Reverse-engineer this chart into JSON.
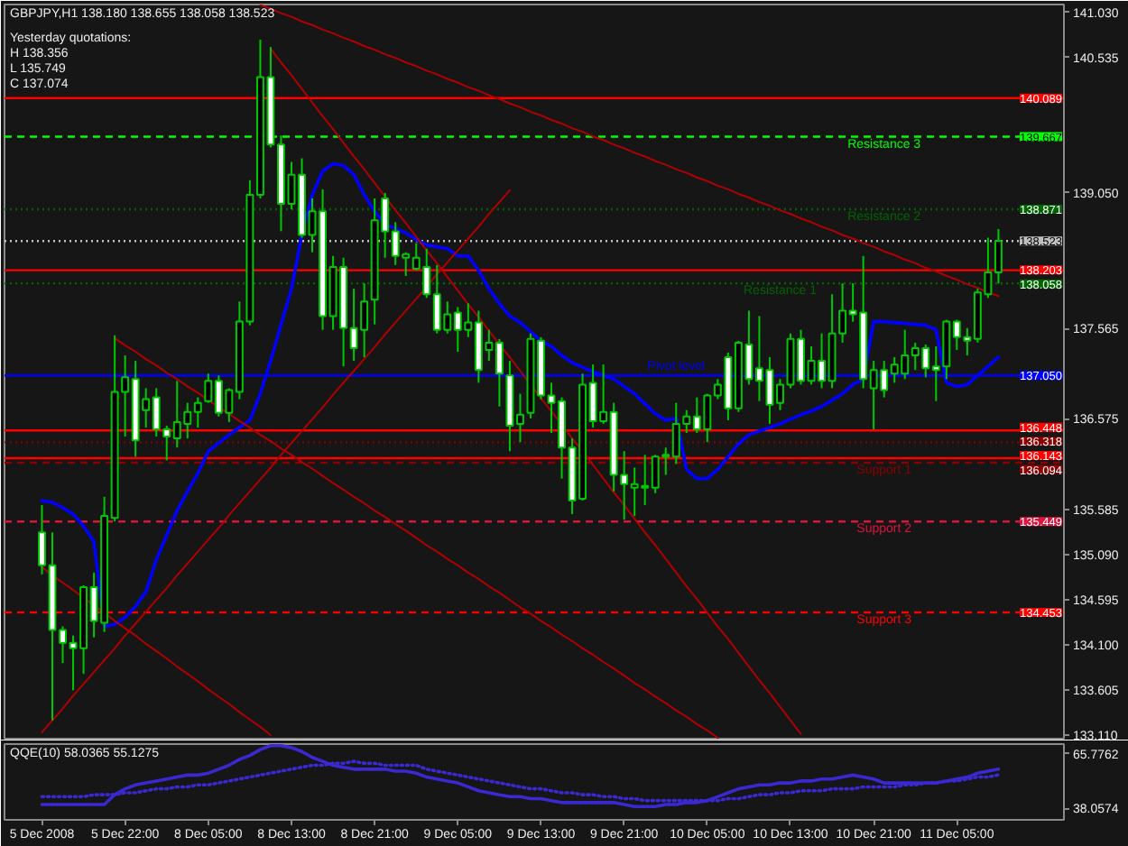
{
  "chart_data": [
    {
      "type": "candlestick",
      "title": "GBPJPY,H1 138.180 138.655 138.058 138.523",
      "annotations": [
        "Yesterday quotations:",
        "H 138.356",
        "L 135.749",
        "C 137.074",
        {
          "text": "Resistance 3",
          "y": 139.667
        },
        {
          "text": "Resistance 2",
          "y": 138.871
        },
        {
          "text": "Resistance 1",
          "y": 138.058
        },
        {
          "text": "Pivot level",
          "y": 137.05
        },
        {
          "text": "Support 1",
          "y": 136.094
        },
        {
          "text": "Support 2",
          "y": 135.449
        },
        {
          "text": "Support 3",
          "y": 134.453
        }
      ],
      "categories": [
        null,
        null,
        null,
        null,
        null,
        null,
        null,
        null,
        null,
        null,
        null,
        null,
        null,
        null,
        null,
        null,
        null,
        null,
        null,
        null,
        null,
        null,
        null,
        null,
        null,
        null,
        null,
        null,
        null,
        null,
        null,
        null,
        null,
        null,
        null,
        null,
        null,
        null,
        null,
        null,
        null,
        null,
        null,
        null,
        null,
        null,
        null,
        null,
        null,
        null,
        null,
        null,
        null,
        null,
        null,
        null,
        null,
        null,
        null,
        null,
        null,
        null,
        null,
        null,
        null,
        null,
        null,
        null,
        null,
        null,
        null,
        null,
        null,
        null,
        null,
        null,
        null,
        null,
        null,
        null,
        null,
        null,
        null,
        null,
        null,
        null,
        null,
        null,
        null,
        null,
        null,
        null,
        null
      ],
      "ohlc": [
        [
          135.33,
          135.63,
          134.87,
          134.97
        ],
        [
          134.97,
          135.33,
          133.27,
          134.26
        ],
        [
          134.26,
          134.3,
          133.9,
          134.12
        ],
        [
          134.12,
          134.2,
          133.6,
          134.06
        ],
        [
          134.06,
          134.75,
          133.78,
          134.73
        ],
        [
          134.73,
          134.89,
          134.18,
          134.36
        ],
        [
          134.34,
          135.72,
          134.24,
          135.51
        ],
        [
          135.49,
          137.49,
          135.45,
          136.87
        ],
        [
          136.87,
          137.27,
          136.38,
          137.03
        ],
        [
          137.01,
          137.21,
          136.16,
          136.34
        ],
        [
          136.67,
          136.91,
          136.48,
          136.79
        ],
        [
          136.81,
          136.91,
          136.38,
          136.46
        ],
        [
          136.46,
          136.5,
          136.12,
          136.38
        ],
        [
          136.36,
          136.99,
          136.26,
          136.54
        ],
        [
          136.52,
          136.75,
          136.36,
          136.65
        ],
        [
          136.65,
          136.81,
          136.48,
          136.75
        ],
        [
          136.77,
          137.07,
          136.75,
          136.99
        ],
        [
          136.99,
          137.05,
          136.6,
          136.64
        ],
        [
          136.64,
          136.91,
          136.54,
          136.89
        ],
        [
          136.87,
          137.86,
          136.79,
          137.64
        ],
        [
          137.64,
          139.19,
          137.6,
          139.03
        ],
        [
          139.03,
          140.73,
          138.99,
          140.32
        ],
        [
          140.32,
          140.65,
          139.55,
          139.58
        ],
        [
          139.58,
          139.68,
          138.63,
          138.93
        ],
        [
          138.93,
          139.39,
          138.87,
          139.25
        ],
        [
          139.25,
          139.43,
          138.56,
          138.59
        ],
        [
          138.59,
          138.99,
          138.4,
          138.85
        ],
        [
          138.85,
          139.09,
          137.55,
          137.7
        ],
        [
          137.7,
          138.36,
          137.55,
          138.24
        ],
        [
          138.24,
          138.34,
          137.15,
          137.57
        ],
        [
          137.57,
          138.0,
          137.21,
          137.35
        ],
        [
          137.55,
          138.06,
          137.25,
          137.86
        ],
        [
          137.88,
          138.99,
          137.61,
          138.75
        ],
        [
          138.99,
          139.05,
          138.34,
          138.63
        ],
        [
          138.63,
          138.73,
          138.26,
          138.36
        ],
        [
          138.34,
          138.4,
          138.14,
          138.38
        ],
        [
          138.22,
          138.5,
          138.2,
          138.34
        ],
        [
          138.24,
          138.44,
          137.9,
          137.94
        ],
        [
          137.94,
          138.26,
          137.51,
          137.55
        ],
        [
          137.55,
          137.86,
          137.51,
          137.72
        ],
        [
          137.74,
          137.8,
          137.31,
          137.55
        ],
        [
          137.55,
          137.84,
          137.47,
          137.63
        ],
        [
          137.63,
          137.76,
          136.97,
          137.11
        ],
        [
          137.33,
          137.55,
          137.21,
          137.41
        ],
        [
          137.41,
          137.45,
          136.71,
          137.07
        ],
        [
          137.05,
          137.21,
          136.22,
          136.5
        ],
        [
          136.52,
          136.85,
          136.32,
          136.62
        ],
        [
          136.64,
          137.51,
          136.58,
          137.45
        ],
        [
          137.43,
          137.47,
          136.79,
          136.83
        ],
        [
          136.83,
          136.97,
          136.42,
          136.75
        ],
        [
          136.77,
          136.81,
          135.92,
          136.26
        ],
        [
          136.26,
          136.36,
          135.53,
          135.68
        ],
        [
          135.7,
          137.07,
          135.68,
          136.95
        ],
        [
          136.97,
          137.17,
          136.48,
          136.55
        ],
        [
          136.55,
          137.17,
          136.52,
          136.65
        ],
        [
          136.65,
          136.75,
          135.78,
          135.96
        ],
        [
          135.96,
          136.22,
          135.47,
          135.86
        ],
        [
          135.82,
          136.04,
          135.51,
          135.86
        ],
        [
          135.82,
          136.18,
          135.63,
          135.84
        ],
        [
          135.82,
          136.18,
          135.76,
          136.16
        ],
        [
          136.16,
          136.26,
          135.96,
          136.18
        ],
        [
          136.16,
          136.75,
          136.08,
          136.52
        ],
        [
          136.52,
          136.67,
          136.42,
          136.6
        ],
        [
          136.6,
          136.81,
          136.42,
          136.46
        ],
        [
          136.46,
          136.85,
          136.32,
          136.83
        ],
        [
          136.83,
          137.01,
          136.79,
          136.95
        ],
        [
          137.25,
          137.3,
          136.56,
          136.69
        ],
        [
          136.69,
          137.43,
          136.65,
          137.41
        ],
        [
          137.39,
          137.76,
          136.95,
          137.01
        ],
        [
          137.13,
          137.7,
          136.77,
          136.99
        ],
        [
          137.11,
          137.25,
          136.52,
          136.73
        ],
        [
          136.75,
          137.01,
          136.67,
          136.95
        ],
        [
          136.95,
          137.51,
          136.91,
          137.45
        ],
        [
          137.45,
          137.55,
          136.95,
          136.99
        ],
        [
          136.99,
          137.37,
          136.95,
          137.21
        ],
        [
          137.21,
          137.51,
          136.91,
          136.99
        ],
        [
          136.99,
          137.94,
          136.91,
          137.51
        ],
        [
          137.51,
          138.06,
          137.41,
          137.76
        ],
        [
          137.76,
          138.06,
          137.64,
          137.72
        ],
        [
          137.74,
          138.36,
          136.91,
          137.01
        ],
        [
          136.91,
          137.21,
          136.46,
          137.11
        ],
        [
          137.11,
          137.21,
          136.81,
          136.89
        ],
        [
          137.07,
          137.25,
          136.97,
          137.17
        ],
        [
          137.07,
          137.55,
          137.01,
          137.27
        ],
        [
          137.27,
          137.41,
          137.11,
          137.35
        ],
        [
          137.35,
          137.39,
          137.03,
          137.13
        ],
        [
          137.15,
          137.37,
          136.77,
          137.11
        ],
        [
          137.15,
          137.66,
          137.01,
          137.64
        ],
        [
          137.64,
          137.66,
          137.33,
          137.47
        ],
        [
          137.47,
          137.57,
          137.27,
          137.43
        ],
        [
          137.45,
          138.0,
          137.41,
          137.96
        ],
        [
          137.94,
          138.56,
          137.9,
          138.18
        ],
        [
          138.18,
          138.655,
          138.058,
          138.523
        ]
      ],
      "color": "#00c800",
      "colors": [
        "#ffffff",
        "#ffffff",
        "#ffffff",
        "#ffffff",
        "#000000",
        "#ffffff",
        "#000000",
        "#000000",
        "#000000",
        "#ffffff",
        "#000000",
        "#ffffff",
        "#ffffff",
        "#000000",
        "#000000",
        "#000000",
        "#000000",
        "#ffffff",
        "#000000",
        "#000000",
        "#000000",
        "#000000",
        "#ffffff",
        "#ffffff",
        "#000000",
        "#ffffff",
        "#000000",
        "#ffffff",
        "#000000",
        "#ffffff",
        "#ffffff",
        "#000000",
        "#000000",
        "#ffffff",
        "#ffffff",
        "#000000",
        "#000000",
        "#ffffff",
        "#ffffff",
        "#000000",
        "#ffffff",
        "#000000",
        "#ffffff",
        "#000000",
        "#ffffff",
        "#ffffff",
        "#000000",
        "#000000",
        "#ffffff",
        "#ffffff",
        "#ffffff",
        "#ffffff",
        "#000000",
        "#ffffff",
        "#000000",
        "#ffffff",
        "#ffffff",
        "#000000",
        "#000000",
        "#000000",
        "#000000",
        "#000000",
        "#000000",
        "#ffffff",
        "#000000",
        "#000000",
        "#ffffff",
        "#000000",
        "#ffffff",
        "#ffffff",
        "#ffffff",
        "#000000",
        "#000000",
        "#ffffff",
        "#000000",
        "#ffffff",
        "#000000",
        "#000000",
        "#ffffff",
        "#ffffff",
        "#000000",
        "#ffffff",
        "#000000",
        "#000000",
        "#000000",
        "#ffffff",
        "#ffffff",
        "#000000",
        "#ffffff",
        "#ffffff",
        "#000000",
        "#000000",
        "#000000"
      ],
      "series": [
        {
          "type": "line",
          "color": "#0000ff",
          "values": [
            135.68,
            135.66,
            135.6,
            135.53,
            135.4,
            135.23,
            134.3,
            134.32,
            134.4,
            134.52,
            134.68,
            135.03,
            135.3,
            135.57,
            135.78,
            135.98,
            136.22,
            136.31,
            136.4,
            136.48,
            136.56,
            136.85,
            137.21,
            137.61,
            138.0,
            138.59,
            139.03,
            139.29,
            139.37,
            139.35,
            139.25,
            139.03,
            138.85,
            138.71,
            138.66,
            138.61,
            138.54,
            138.48,
            138.46,
            138.44,
            138.36,
            138.36,
            138.2,
            138.0,
            137.84,
            137.7,
            137.63,
            137.53,
            137.43,
            137.37,
            137.27,
            137.19,
            137.14,
            137.09,
            137.05,
            137.01,
            136.93,
            136.85,
            136.74,
            136.63,
            136.56,
            136.58,
            136.02,
            135.92,
            135.92,
            136.02,
            136.16,
            136.3,
            136.4,
            136.44,
            136.48,
            136.52,
            136.57,
            136.62,
            136.66,
            136.71,
            136.78,
            136.85,
            136.95,
            137.01,
            137.64,
            137.64,
            137.63,
            137.62,
            137.61,
            137.6,
            137.55,
            136.97,
            136.93,
            136.95,
            137.05,
            137.15,
            137.25
          ]
        },
        {
          "type": "line",
          "color": "#b00000",
          "values": [
            null,
            null,
            null,
            null,
            null,
            null,
            null,
            null,
            null,
            null,
            null,
            null,
            null,
            null,
            null,
            null,
            null,
            null,
            null,
            null,
            null,
            141.11,
            141.07,
            141.02,
            140.98,
            140.93,
            140.89,
            140.84,
            140.8,
            140.75,
            140.71,
            140.66,
            140.62,
            140.57,
            140.53,
            140.48,
            140.44,
            140.39,
            140.35,
            140.3,
            140.26,
            140.21,
            140.17,
            140.12,
            140.08,
            140.03,
            139.99,
            139.94,
            139.9,
            139.85,
            139.81,
            139.76,
            139.72,
            139.67,
            139.63,
            139.58,
            139.54,
            139.49,
            139.45,
            139.4,
            139.36,
            139.31,
            139.27,
            139.22,
            139.18,
            139.13,
            139.09,
            139.04,
            139.0,
            138.95,
            138.91,
            138.86,
            138.82,
            138.77,
            138.73,
            138.68,
            138.64,
            138.59,
            138.55,
            138.5,
            138.46,
            138.41,
            138.37,
            138.32,
            138.28,
            138.23,
            138.19,
            138.14,
            138.1,
            138.05,
            138.01,
            137.96,
            137.92
          ]
        },
        {
          "type": "line",
          "color": "#b00000",
          "values": [
            null,
            null,
            null,
            null,
            null,
            null,
            null,
            null,
            null,
            null,
            null,
            null,
            null,
            null,
            null,
            null,
            null,
            null,
            null,
            null,
            null,
            null,
            140.63,
            140.48,
            140.34,
            140.19,
            140.04,
            139.89,
            139.75,
            139.6,
            139.45,
            139.31,
            139.16,
            139.01,
            138.86,
            138.72,
            138.57,
            138.42,
            138.28,
            138.13,
            137.98,
            137.83,
            137.69,
            137.54,
            137.39,
            137.25,
            137.1,
            136.95,
            136.8,
            136.66,
            136.51,
            136.36,
            136.22,
            136.07,
            135.92,
            135.77,
            135.63,
            135.48,
            135.33,
            135.19,
            135.04,
            134.89,
            134.74,
            134.6,
            134.45,
            134.3,
            134.16,
            134.01,
            133.86,
            133.71,
            133.57,
            133.42,
            133.27,
            133.12,
            null,
            null,
            null,
            null,
            null,
            null,
            null,
            null,
            null,
            null,
            null,
            null,
            null,
            null,
            null,
            null,
            null,
            null,
            null
          ]
        },
        {
          "type": "line",
          "color": "#b00000",
          "values": [
            null,
            null,
            null,
            null,
            null,
            null,
            null,
            137.46,
            137.38,
            137.31,
            137.23,
            137.16,
            137.08,
            137.01,
            136.93,
            136.86,
            136.78,
            136.7,
            136.63,
            136.55,
            136.48,
            136.4,
            136.33,
            136.25,
            136.18,
            136.1,
            136.03,
            135.95,
            135.87,
            135.8,
            135.72,
            135.65,
            135.57,
            135.5,
            135.42,
            135.35,
            135.27,
            135.19,
            135.12,
            135.04,
            134.97,
            134.89,
            134.82,
            134.74,
            134.67,
            134.59,
            134.51,
            134.44,
            134.36,
            134.29,
            134.21,
            134.14,
            134.06,
            133.99,
            133.91,
            133.84,
            133.76,
            133.68,
            133.61,
            133.53,
            133.46,
            133.38,
            133.31,
            133.23,
            133.16,
            133.08,
            null,
            null,
            null,
            null,
            null,
            null,
            null,
            null,
            null,
            null,
            null,
            null,
            null,
            null,
            null,
            null,
            null,
            null,
            null,
            null,
            null,
            null,
            null,
            null,
            null,
            null,
            null
          ]
        },
        {
          "type": "line",
          "color": "#b00000",
          "values": [
            134.95,
            134.86,
            134.78,
            134.7,
            134.61,
            134.53,
            134.45,
            134.36,
            134.28,
            134.2,
            134.11,
            134.03,
            133.95,
            133.86,
            133.78,
            133.7,
            133.61,
            133.53,
            133.45,
            133.36,
            133.28,
            133.2,
            133.11,
            null,
            null,
            null,
            null,
            null,
            null,
            null,
            null,
            null,
            null,
            null,
            null,
            null,
            null,
            null,
            null,
            null,
            null,
            null,
            null,
            null,
            null,
            null,
            null,
            null,
            null,
            null,
            null,
            null,
            null,
            null,
            null,
            null,
            null,
            null,
            null,
            null,
            null,
            null,
            null,
            null,
            null,
            null,
            null,
            null,
            null,
            null,
            null,
            null,
            null,
            null,
            null,
            null,
            null,
            null,
            null,
            null,
            null,
            null,
            null,
            null,
            null,
            null,
            null,
            null,
            null,
            null,
            null,
            null,
            null
          ]
        },
        {
          "type": "line",
          "color": "#b00000",
          "values": [
            133.14,
            133.27,
            133.4,
            133.54,
            133.67,
            133.8,
            133.93,
            134.06,
            134.2,
            134.33,
            134.46,
            134.59,
            134.72,
            134.86,
            134.99,
            135.12,
            135.25,
            135.38,
            135.52,
            135.65,
            135.78,
            135.91,
            136.04,
            136.18,
            136.31,
            136.44,
            136.57,
            136.7,
            136.84,
            136.97,
            137.1,
            137.23,
            137.36,
            137.5,
            137.63,
            137.76,
            137.89,
            138.02,
            138.16,
            138.29,
            138.42,
            138.55,
            138.68,
            138.82,
            138.95,
            139.08,
            null,
            null,
            null,
            null,
            null,
            null,
            null,
            null,
            null,
            null,
            null,
            null,
            null,
            null,
            null,
            null,
            null,
            null,
            null,
            null,
            null,
            null,
            null,
            null,
            null,
            null,
            null,
            null,
            null,
            null,
            null,
            null,
            null,
            null,
            null,
            null,
            null,
            null,
            null,
            null,
            null,
            null,
            null,
            null,
            null,
            null,
            null
          ]
        }
      ],
      "ref_lines": [
        {
          "axis": "y",
          "value": 140.089,
          "label": "140.089",
          "color": "#ff0000",
          "line_style": "solid"
        },
        {
          "axis": "y",
          "value": 139.667,
          "label": "139.667",
          "color": "#00ff00",
          "line_style": "dashed"
        },
        {
          "axis": "y",
          "value": 138.871,
          "label": "138.871",
          "color": "#006400",
          "line_style": "dotted"
        },
        {
          "axis": "y",
          "value": 138.523,
          "label": "138.523",
          "color": "#c0c0c0",
          "line_style": "dotted"
        },
        {
          "axis": "y",
          "value": 138.203,
          "label": "138.203",
          "color": "#ff0000",
          "line_style": "solid"
        },
        {
          "axis": "y",
          "value": 138.058,
          "label": "138.058",
          "color": "#006400",
          "line_style": "dotted"
        },
        {
          "axis": "y",
          "value": 137.05,
          "label": "137.050",
          "color": "#0000ff",
          "line_style": "solid"
        },
        {
          "axis": "y",
          "value": 136.448,
          "label": "136.448",
          "color": "#ff0000",
          "line_style": "solid"
        },
        {
          "axis": "y",
          "value": 136.318,
          "label": "136.318",
          "color": "#8b0000",
          "line_style": "dotted"
        },
        {
          "axis": "y",
          "value": 136.143,
          "label": "136.143",
          "color": "#ff0000",
          "line_style": "solid"
        },
        {
          "axis": "y",
          "value": 136.094,
          "label": "136.094",
          "color": "#8b0000",
          "line_style": "dashed"
        },
        {
          "axis": "y",
          "value": 135.449,
          "label": "135.449",
          "color": "#dc143c",
          "line_style": "dashed"
        },
        {
          "axis": "y",
          "value": 134.453,
          "label": "134.453",
          "color": "#ff0000",
          "line_style": "dashed"
        }
      ],
      "ylim": [
        133.07,
        141.115
      ],
      "yticks": [
        {
          "value": 141.03,
          "label": "141.030"
        },
        {
          "value": 140.535,
          "label": "140.535"
        },
        {
          "value": 139.05,
          "label": "139.050"
        },
        {
          "value": 137.565,
          "label": "137.565"
        },
        {
          "value": 136.575,
          "label": "136.575"
        },
        {
          "value": 135.585,
          "label": "135.585"
        },
        {
          "value": 135.09,
          "label": "135.090"
        },
        {
          "value": 134.595,
          "label": "134.595"
        },
        {
          "value": 134.1,
          "label": "134.100"
        },
        {
          "value": 133.605,
          "label": "133.605"
        },
        {
          "value": 133.11,
          "label": "133.110"
        }
      ],
      "tick_labels": "y"
    },
    {
      "type": "line",
      "title": "QQE(10) 58.0365 55.1275",
      "categories": [
        "5 Dec 2008",
        null,
        null,
        null,
        null,
        null,
        null,
        null,
        "5 Dec 22:00",
        null,
        null,
        null,
        null,
        null,
        null,
        null,
        "8 Dec 05:00",
        null,
        null,
        null,
        null,
        null,
        null,
        null,
        "8 Dec 13:00",
        null,
        null,
        null,
        null,
        null,
        null,
        null,
        "8 Dec 21:00",
        null,
        null,
        null,
        null,
        null,
        null,
        null,
        "9 Dec 05:00",
        null,
        null,
        null,
        null,
        null,
        null,
        null,
        "9 Dec 13:00",
        null,
        null,
        null,
        null,
        null,
        null,
        null,
        "9 Dec 21:00",
        null,
        null,
        null,
        null,
        null,
        null,
        null,
        "10 Dec 05:00",
        null,
        null,
        null,
        null,
        null,
        null,
        null,
        "10 Dec 13:00",
        null,
        null,
        null,
        null,
        null,
        null,
        null,
        "10 Dec 21:00",
        null,
        null,
        null,
        null,
        null,
        null,
        null,
        "11 Dec 05:00",
        null,
        null,
        null,
        null
      ],
      "series": [
        {
          "color": "#3a28d0",
          "values": [
            40,
            40,
            40,
            40,
            40,
            40,
            40,
            45,
            48,
            50,
            51,
            52,
            53,
            54,
            55,
            55,
            56,
            58,
            60,
            63,
            65,
            68,
            70,
            70,
            69,
            67,
            64,
            62,
            60,
            59,
            58,
            58,
            58,
            58,
            57,
            57,
            56,
            54,
            53,
            52,
            51,
            49,
            47,
            46,
            45,
            44,
            44,
            43,
            43,
            42,
            41,
            41,
            41,
            41,
            41,
            41,
            40,
            39,
            39,
            39,
            40,
            40,
            41,
            41,
            42,
            44,
            46,
            48,
            49,
            50,
            50,
            51,
            51,
            52,
            52,
            53,
            53,
            54,
            55,
            54,
            53,
            51,
            51,
            51,
            51,
            51,
            51,
            52,
            53,
            54,
            56,
            57,
            58.0365
          ]
        },
        {
          "color": "#3a28d0",
          "line_style": "dotted",
          "values": [
            44,
            44,
            44,
            44,
            44,
            45,
            45,
            45,
            46,
            46,
            47,
            48,
            48,
            49,
            49,
            50,
            50,
            51,
            52,
            53,
            54,
            55,
            56,
            57,
            58,
            59,
            60,
            60,
            61,
            61,
            62,
            61,
            61,
            60,
            60,
            60,
            60,
            58,
            57,
            56,
            55,
            54,
            53,
            52,
            51,
            50,
            49,
            48,
            48,
            47,
            46,
            46,
            45,
            45,
            44,
            44,
            43,
            43,
            42,
            42,
            42,
            42,
            42,
            42,
            42,
            42,
            43,
            43,
            44,
            45,
            45,
            46,
            46,
            47,
            47,
            47,
            48,
            48,
            48,
            49,
            49,
            49,
            49,
            50,
            50,
            51,
            51,
            52,
            52,
            53,
            54,
            54,
            55.1275
          ]
        }
      ],
      "ylim": [
        32.2,
        70.8
      ],
      "yticks": [
        65.7762,
        38.0574
      ]
    }
  ]
}
